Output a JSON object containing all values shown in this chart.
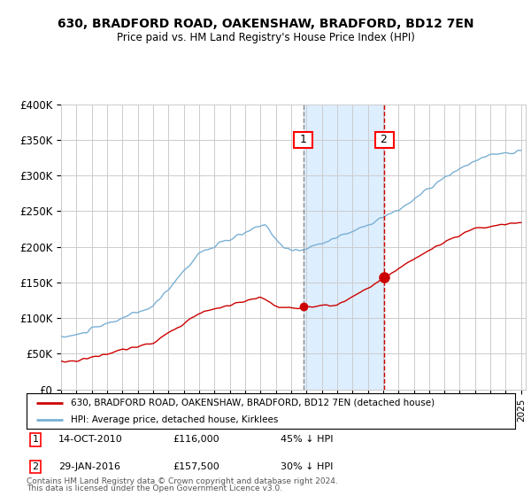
{
  "title": "630, BRADFORD ROAD, OAKENSHAW, BRADFORD, BD12 7EN",
  "subtitle": "Price paid vs. HM Land Registry's House Price Index (HPI)",
  "ylim": [
    0,
    400000
  ],
  "yticks": [
    0,
    50000,
    100000,
    150000,
    200000,
    250000,
    300000,
    350000,
    400000
  ],
  "ytick_labels": [
    "£0",
    "£50K",
    "£100K",
    "£150K",
    "£200K",
    "£250K",
    "£300K",
    "£350K",
    "£400K"
  ],
  "transaction1_date": 2010.79,
  "transaction1_price": 116000,
  "transaction2_date": 2016.08,
  "transaction2_price": 157500,
  "legend_line1": "630, BRADFORD ROAD, OAKENSHAW, BRADFORD, BD12 7EN (detached house)",
  "legend_line2": "HPI: Average price, detached house, Kirklees",
  "footer1": "Contains HM Land Registry data © Crown copyright and database right 2024.",
  "footer2": "This data is licensed under the Open Government Licence v3.0.",
  "ann1_date": "14-OCT-2010",
  "ann1_price": "£116,000",
  "ann1_pct": "45% ↓ HPI",
  "ann2_date": "29-JAN-2016",
  "ann2_price": "£157,500",
  "ann2_pct": "30% ↓ HPI",
  "red_color": "#cc0000",
  "blue_color": "#7ab0d4",
  "shade_color": "#ddeeff",
  "grid_color": "#cccccc",
  "bg_color": "#ffffff"
}
